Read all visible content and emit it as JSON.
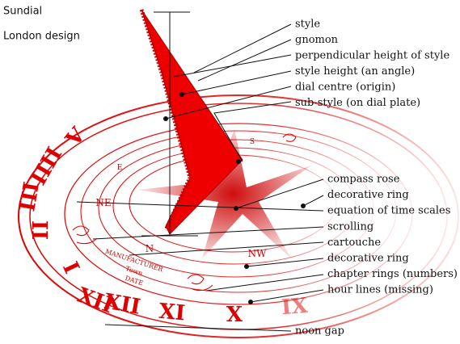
{
  "title": [
    "Sundial",
    "London design"
  ],
  "top_labels": [
    "style",
    "gnomon",
    "perpendicular height of style",
    "style height  (an angle)",
    "dial centre (origin)",
    "sub-style (on dial plate)"
  ],
  "lower_labels": [
    "compass rose",
    "decorative ring",
    "equation of time scales",
    "scrolling",
    "cartouche",
    "decorative ring",
    "chapter rings (numbers)",
    "hour lines (missing)"
  ],
  "bottom_label": "noon gap",
  "compass": [
    "N",
    "NE",
    "NW",
    "E",
    "S"
  ],
  "cartouche": [
    "MANUFACTURER",
    "Town",
    "DATE"
  ],
  "numerals": [
    "V",
    "IIII",
    "III",
    "II",
    "I",
    "XII",
    "XII",
    "XI",
    "X",
    "IX"
  ]
}
